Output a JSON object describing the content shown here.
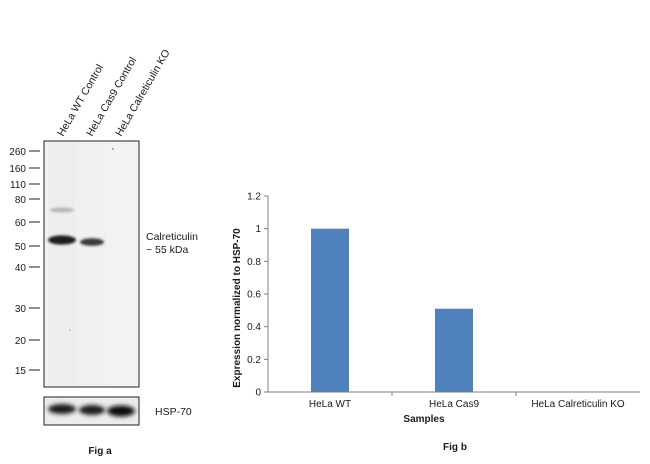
{
  "fig_a": {
    "lane_labels": [
      "HeLa WT Control",
      "HeLa Cas9 Control",
      "HeLa Calreticulin KO"
    ],
    "mw_markers": [
      "260",
      "160",
      "110",
      "80",
      "60",
      "50",
      "40",
      "30",
      "20",
      "15"
    ],
    "band_label_line1": "Calreticulin",
    "band_label_line2": "~ 55 kDa",
    "loading_control_label": "HSP-70",
    "caption": "Fig a"
  },
  "fig_b": {
    "caption": "Fig b"
  },
  "chart_data": {
    "type": "bar",
    "categories": [
      "HeLa WT",
      "HeLa Cas9",
      "HeLa Calreticulin KO"
    ],
    "values": [
      1.0,
      0.51,
      0.0
    ],
    "title": "",
    "xlabel": "Samples",
    "ylabel": "Expression  normalized to HSP-70",
    "ylim": [
      0,
      1.2
    ],
    "yticks": [
      "0",
      "0.2",
      "0.4",
      "0.6",
      "0.8",
      "1",
      "1.2"
    ],
    "bar_color": "#4f81bd",
    "grid": false
  }
}
